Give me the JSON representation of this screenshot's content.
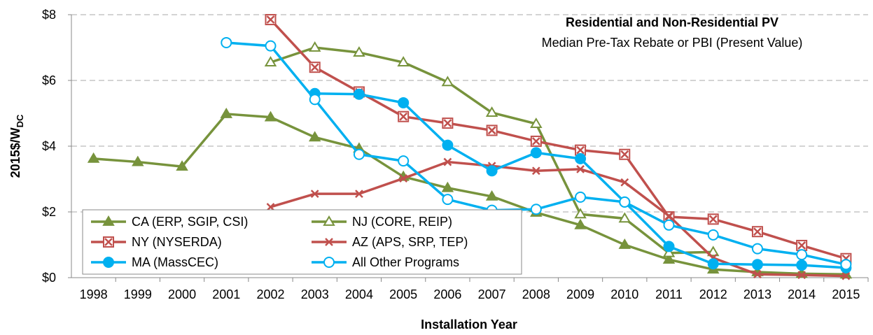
{
  "chart_data": {
    "type": "line",
    "title": "Residential and Non-Residential PV",
    "subtitle": "Median Pre-Tax Rebate or PBI (Present Value)",
    "x_label": "Installation Year",
    "y_label": {
      "main": "2015$/W",
      "sub": "DC"
    },
    "categories": [
      "1998",
      "1999",
      "2000",
      "2001",
      "2002",
      "2003",
      "2004",
      "2005",
      "2006",
      "2007",
      "2008",
      "2009",
      "2010",
      "2011",
      "2012",
      "2013",
      "2014",
      "2015"
    ],
    "ylim": [
      0,
      8
    ],
    "yticks": [
      {
        "value": 0,
        "label": "$0"
      },
      {
        "value": 2,
        "label": "$2"
      },
      {
        "value": 4,
        "label": "$4"
      },
      {
        "value": 6,
        "label": "$6"
      },
      {
        "value": 8,
        "label": "$8"
      }
    ],
    "grid": true,
    "legend": "lower left",
    "series": [
      {
        "name": "CA (ERP, SGIP, CSI)",
        "color": "#77933c",
        "marker": "triangle-filled",
        "values": [
          3.62,
          3.52,
          3.38,
          4.98,
          4.88,
          4.27,
          3.93,
          3.07,
          2.73,
          2.47,
          1.98,
          1.6,
          1.0,
          0.55,
          0.25,
          0.17,
          0.12,
          0.1
        ]
      },
      {
        "name": "NJ (CORE, REIP)",
        "color": "#77933c",
        "marker": "triangle-open",
        "values": [
          null,
          null,
          null,
          null,
          6.55,
          7.0,
          6.85,
          6.55,
          5.95,
          5.02,
          4.68,
          1.93,
          1.8,
          0.75,
          0.78,
          null,
          null,
          null
        ]
      },
      {
        "name": "NY (NYSERDA)",
        "color": "#c0504d",
        "marker": "square-x",
        "values": [
          null,
          null,
          null,
          null,
          7.85,
          6.4,
          5.65,
          4.9,
          4.7,
          4.48,
          4.15,
          3.88,
          3.75,
          1.85,
          1.78,
          1.4,
          0.98,
          0.58
        ]
      },
      {
        "name": "AZ (APS, SRP, TEP)",
        "color": "#c0504d",
        "marker": "x",
        "values": [
          null,
          null,
          null,
          null,
          2.15,
          2.55,
          2.55,
          3.02,
          3.52,
          3.4,
          3.25,
          3.3,
          2.9,
          1.88,
          0.6,
          0.1,
          0.08,
          0.05
        ]
      },
      {
        "name": "MA (MassCEC)",
        "color": "#00b0f0",
        "marker": "circle-filled",
        "values": [
          null,
          null,
          null,
          null,
          null,
          5.6,
          5.58,
          5.32,
          4.03,
          3.25,
          3.8,
          3.62,
          2.3,
          0.95,
          0.42,
          0.4,
          0.38,
          0.3
        ]
      },
      {
        "name": "All Other Programs",
        "color": "#00b0f0",
        "marker": "circle-open",
        "values": [
          null,
          null,
          null,
          7.15,
          7.05,
          5.42,
          3.75,
          3.55,
          2.38,
          2.05,
          2.08,
          2.45,
          2.3,
          1.6,
          1.3,
          0.88,
          0.7,
          0.4
        ]
      }
    ]
  }
}
